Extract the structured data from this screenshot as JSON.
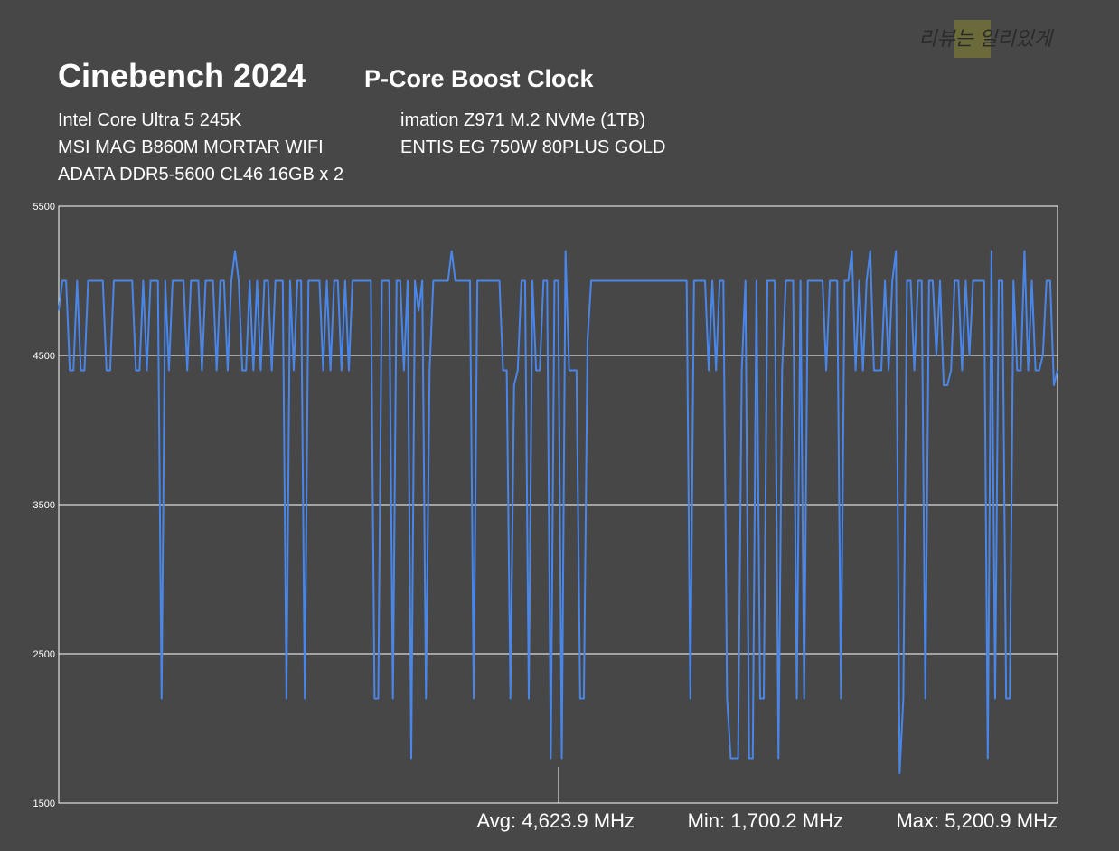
{
  "chart_data": {
    "type": "line",
    "title": "Cinebench 2024",
    "subtitle": "P-Core Boost Clock",
    "watermark": "리뷰는 일리있게",
    "specs_left": [
      "Intel Core Ultra 5 245K",
      "MSI MAG B860M MORTAR WIFI",
      "ADATA DDR5-5600 CL46 16GB x 2"
    ],
    "specs_right": [
      "imation Z971 M.2 NVMe (1TB)",
      "ENTIS EG 750W 80PLUS GOLD"
    ],
    "stats": [
      "Avg: 4,623.9 MHz",
      "Min: 1,700.2 MHz",
      "Max: 5,200.9 MHz"
    ],
    "color": "#4a86e8",
    "ylim": [
      1500,
      5500
    ],
    "yticks": [
      1500,
      2500,
      3500,
      4500,
      5500
    ],
    "grid": true,
    "values": [
      4800,
      5000,
      5000,
      4400,
      4400,
      5000,
      4400,
      4400,
      5000,
      5000,
      5000,
      5000,
      5000,
      4400,
      4400,
      5000,
      5000,
      5000,
      5000,
      5000,
      5000,
      4400,
      4400,
      5000,
      4400,
      5000,
      5000,
      5000,
      2200,
      5000,
      4400,
      5000,
      5000,
      5000,
      5000,
      4400,
      5000,
      5000,
      5000,
      4400,
      5000,
      5000,
      5000,
      4400,
      5000,
      5000,
      4400,
      5000,
      5200,
      5000,
      4400,
      4400,
      5000,
      4400,
      5000,
      4400,
      5000,
      5000,
      4400,
      5000,
      5000,
      5000,
      2200,
      5000,
      4400,
      5000,
      5000,
      2200,
      5000,
      5000,
      5000,
      5000,
      4400,
      5000,
      4400,
      5000,
      5000,
      4400,
      5000,
      4400,
      5000,
      5000,
      5000,
      5000,
      5000,
      5000,
      2200,
      2200,
      5000,
      5000,
      5000,
      2200,
      5000,
      5000,
      4400,
      5000,
      1800,
      5000,
      4800,
      5000,
      2200,
      4400,
      5000,
      5000,
      5000,
      5000,
      5000,
      5200,
      5000,
      5000,
      5000,
      5000,
      5000,
      2200,
      5000,
      5000,
      5000,
      5000,
      5000,
      5000,
      5000,
      4400,
      4400,
      2200,
      4300,
      4400,
      5000,
      5000,
      2200,
      5000,
      4400,
      4400,
      5000,
      5000,
      1800,
      5000,
      5000,
      1800,
      5200,
      4400,
      4400,
      4400,
      2200,
      2200,
      4600,
      5000,
      5000,
      5000,
      5000,
      5000,
      5000,
      5000,
      5000,
      5000,
      5000,
      5000,
      5000,
      5000,
      5000,
      5000,
      5000,
      5000,
      5000,
      5000,
      5000,
      5000,
      5000,
      5000,
      5000,
      5000,
      5000,
      5000,
      2200,
      5000,
      5000,
      5000,
      5000,
      4400,
      5000,
      4400,
      5000,
      5000,
      2200,
      1800,
      1800,
      1800,
      4400,
      5000,
      1800,
      1800,
      5000,
      2200,
      2200,
      5000,
      5000,
      5000,
      1800,
      4400,
      5000,
      5000,
      5000,
      2200,
      5000,
      2200,
      5000,
      5000,
      5000,
      5000,
      5000,
      4400,
      5000,
      5000,
      5000,
      2200,
      5000,
      5000,
      5200,
      4400,
      5000,
      4400,
      5000,
      5200,
      4400,
      4400,
      4400,
      5000,
      4400,
      5000,
      5200,
      1700,
      2200,
      5000,
      5000,
      4400,
      5000,
      5000,
      2200,
      5000,
      5000,
      4500,
      5000,
      4300,
      4300,
      4400,
      5000,
      5000,
      4400,
      5000,
      4500,
      5000,
      5000,
      5000,
      5000,
      1800,
      5200,
      2200,
      5000,
      5000,
      2200,
      2200,
      5000,
      4400,
      4400,
      5200,
      4400,
      5000,
      4400,
      4400,
      4500,
      5000,
      5000,
      4300,
      4400
    ]
  }
}
